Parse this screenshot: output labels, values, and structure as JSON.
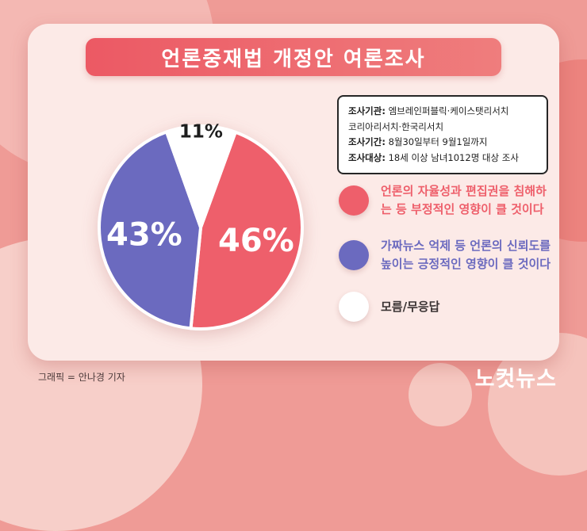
{
  "title": "언론중재법 개정안 여론조사",
  "info_box": {
    "lines": [
      {
        "label": "조사기관:",
        "rest": " 엠브레인퍼블릭·케이스탯리서치"
      },
      {
        "label": "",
        "rest": "코리아리서치·한국리서치"
      },
      {
        "label": "조사기간:",
        "rest": " 8월30일부터 9월1일까지"
      },
      {
        "label": "조사대상:",
        "rest": " 18세 이상 남녀1012명 대상 조사"
      }
    ]
  },
  "legend": {
    "items": [
      {
        "text": "언론의 자율성과 편집권을 침해하는 등 부정적인 영향이 클 것이다"
      },
      {
        "text": "가짜뉴스 억제 등 언론의 신뢰도를 높이는 긍정적인 영향이 클 것이다"
      },
      {
        "text": "모름/무응답"
      }
    ]
  },
  "chart_data": {
    "type": "pie",
    "title": "언론중재법 개정안 여론조사",
    "labels": [
      "언론의 자율성과 편집권을 침해하는 등 부정적인 영향이 클 것이다",
      "가짜뉴스 억제 등 언론의 신뢰도를 높이는 긍정적인 영향이 클 것이다",
      "모름/무응답"
    ],
    "values": [
      46,
      43,
      11
    ],
    "unit": "%",
    "colors": [
      "#ee5f6b",
      "#6b6abf",
      "#ffffff"
    ],
    "text_colors": [
      "#ee5f6b",
      "#6b6abf",
      "#3b3434"
    ],
    "start_angle": 20,
    "label_radius": [
      0.56,
      0.56,
      0.95
    ],
    "label_colors": [
      "#ffffff",
      "#ffffff",
      "#1d1d1d"
    ],
    "label_sizes": [
      40,
      40,
      23
    ],
    "legend_position": "right"
  },
  "theme": {
    "background": "#ef9b96",
    "card": "#fceae7",
    "banner": "#ec5964",
    "red": "#ee5f6b",
    "purple": "#6b6abf",
    "white": "#ffffff"
  },
  "credit": "그래픽 = 안나경 기자",
  "logo": "노컷뉴스"
}
